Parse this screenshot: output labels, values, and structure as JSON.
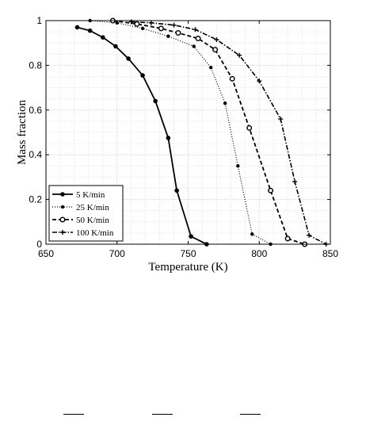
{
  "chart_data": {
    "type": "line",
    "title": "",
    "xlabel": "Temperature (K)",
    "ylabel": "Mass fraction",
    "xlim": [
      650,
      850
    ],
    "ylim": [
      0,
      1
    ],
    "xticks": [
      650,
      700,
      750,
      800,
      850
    ],
    "yticks": [
      0,
      0.2,
      0.4,
      0.6,
      0.8,
      1
    ],
    "grid": true,
    "legend_position": "bottom-left",
    "series": [
      {
        "name": "5 K/min",
        "style": "solid",
        "marker": "filled-circle",
        "x": [
          672,
          681,
          690,
          699,
          708,
          718,
          727,
          736,
          742,
          752,
          763
        ],
        "y": [
          0.97,
          0.955,
          0.925,
          0.885,
          0.83,
          0.755,
          0.64,
          0.475,
          0.24,
          0.035,
          0.0
        ]
      },
      {
        "name": "25 K/min",
        "style": "dotted",
        "marker": "dot",
        "x": [
          681,
          700,
          718,
          736,
          754,
          766,
          776,
          785,
          795,
          808
        ],
        "y": [
          1.0,
          0.99,
          0.965,
          0.93,
          0.885,
          0.79,
          0.63,
          0.35,
          0.045,
          0.0
        ]
      },
      {
        "name": "50 K/min",
        "style": "dashed",
        "marker": "open-circle",
        "x": [
          697,
          714,
          731,
          743,
          757,
          769,
          781,
          793,
          808,
          820,
          832
        ],
        "y": [
          1.0,
          0.985,
          0.965,
          0.945,
          0.92,
          0.87,
          0.74,
          0.52,
          0.24,
          0.025,
          0.0
        ]
      },
      {
        "name": "100 K/min",
        "style": "dashdot",
        "marker": "plus",
        "x": [
          710,
          724,
          740,
          755,
          770,
          786,
          800,
          815,
          825,
          835,
          847
        ],
        "y": [
          0.995,
          0.99,
          0.98,
          0.96,
          0.915,
          0.845,
          0.73,
          0.56,
          0.28,
          0.04,
          0.0
        ]
      }
    ]
  }
}
